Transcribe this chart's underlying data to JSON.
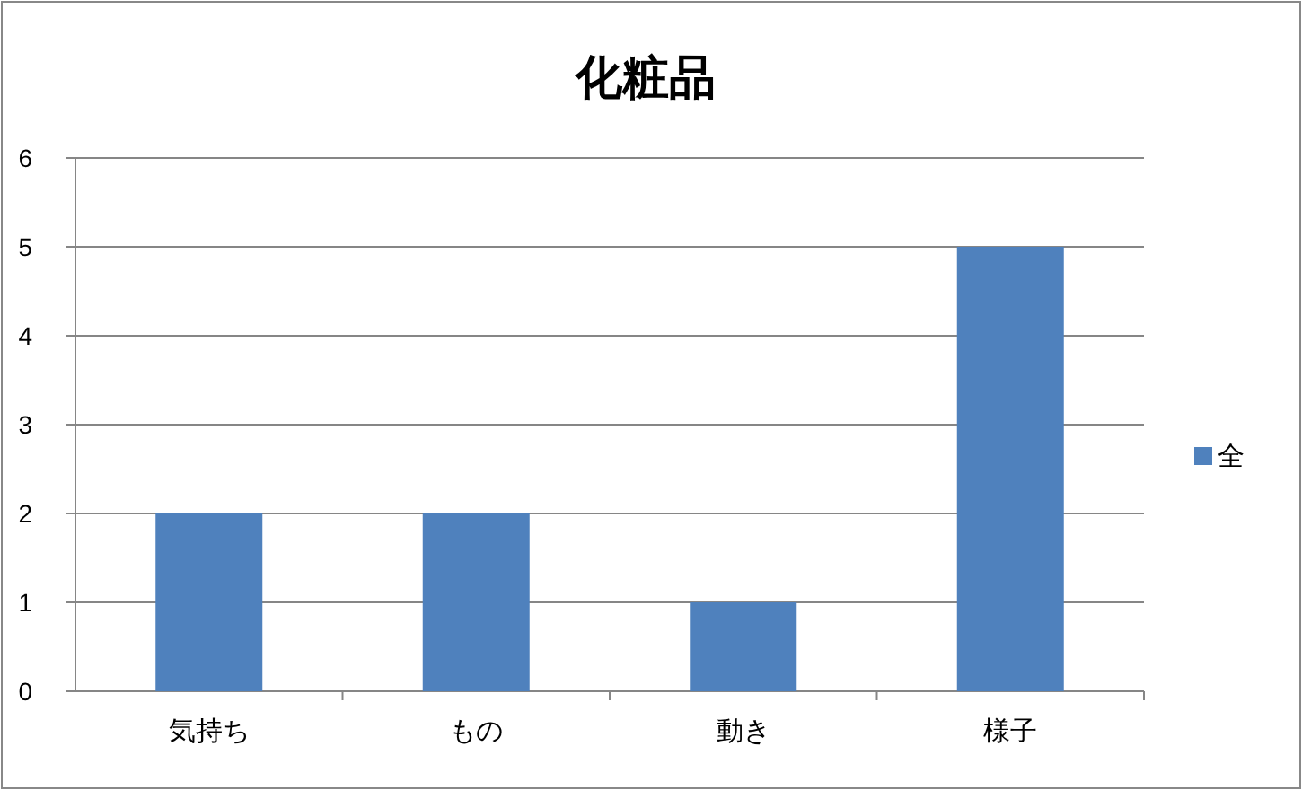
{
  "chart_data": {
    "type": "bar",
    "title": "化粧品",
    "categories": [
      "気持ち",
      "もの",
      "動き",
      "様子"
    ],
    "series": [
      {
        "name": "全",
        "color": "#4f81bd",
        "values": [
          2,
          2,
          1,
          5
        ]
      }
    ],
    "ylim": [
      0,
      6
    ],
    "yticks": [
      0,
      1,
      2,
      3,
      4,
      5,
      6
    ],
    "grid": "y",
    "legend": "right"
  }
}
